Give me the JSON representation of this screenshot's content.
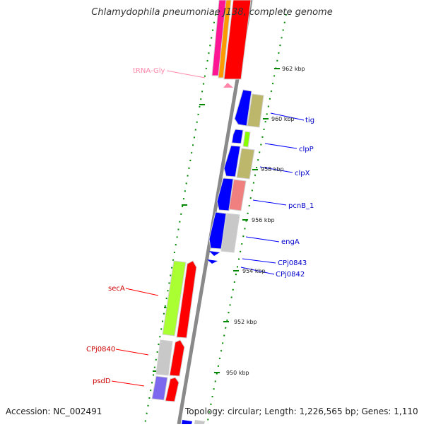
{
  "title": "Chlamydophila pneumoniae J138, complete genome",
  "accession": "Accession: NC_002491",
  "topology": "Topology: circular; Length: 1,226,565 bp; Genes: 1,110",
  "ticks": [
    "962 kbp",
    "960 kbp",
    "958 kbp",
    "956 kbp",
    "954 kbp",
    "952 kbp",
    "950 kbp"
  ],
  "labels": {
    "trna_gly": "tRNA-Gly",
    "tig": "tig",
    "clpP": "clpP",
    "clpX": "clpX",
    "pcnB_1": "pcnB_1",
    "engA": "engA",
    "cpj0843": "CPj0843",
    "cpj0842": "CPj0842",
    "secA": "secA",
    "cpj0840": "CPj0840",
    "psdD": "psdD"
  },
  "colors": {
    "forward": "#0000ff",
    "reverse": "#ff0000",
    "trna": "#ff88aa",
    "secA": "#aaff33",
    "tick": "#008800",
    "backbone": "#888888"
  }
}
